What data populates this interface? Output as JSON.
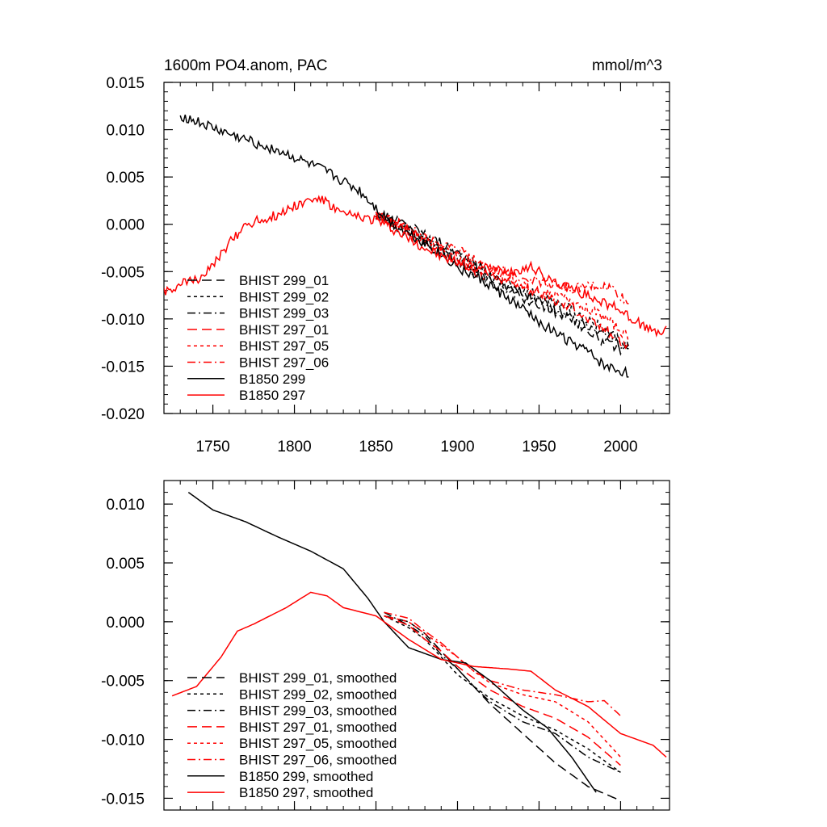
{
  "chart_data": [
    {
      "type": "line",
      "title": "1600m PO4.anom, PAC",
      "units": "mmol/m^3",
      "xlim": [
        1720,
        2030
      ],
      "ylim": [
        -0.02,
        0.015
      ],
      "x_ticks": [
        1750,
        1800,
        1850,
        1900,
        1950,
        2000
      ],
      "x_tick_labels": [
        "1750",
        "1800",
        "1850",
        "1900",
        "1950",
        "2000"
      ],
      "y_ticks": [
        0.015,
        0.01,
        0.005,
        0.0,
        -0.005,
        -0.01,
        -0.015,
        -0.02
      ],
      "y_tick_labels": [
        "0.015",
        "0.010",
        "0.005",
        "0.000",
        "-0.005",
        "-0.010",
        "-0.015",
        "-0.020"
      ],
      "legend_position": "bottom-left",
      "noisy": true,
      "series": [
        {
          "name": "BHIST 299_01",
          "color": "#000000",
          "dash": "long-dash",
          "x": [
            1850,
            1870,
            1890,
            1910,
            1930,
            1950,
            1970,
            1990,
            2005
          ],
          "y": [
            0.001,
            0.0,
            -0.002,
            -0.004,
            -0.0065,
            -0.008,
            -0.01,
            -0.0125,
            -0.0135
          ]
        },
        {
          "name": "BHIST 299_02",
          "color": "#000000",
          "dash": "short-dash",
          "x": [
            1850,
            1870,
            1890,
            1910,
            1930,
            1950,
            1970,
            1990,
            2005
          ],
          "y": [
            0.001,
            -0.0005,
            -0.0025,
            -0.0045,
            -0.0065,
            -0.0075,
            -0.009,
            -0.011,
            -0.0128
          ]
        },
        {
          "name": "BHIST 299_03",
          "color": "#000000",
          "dash": "dash-dot",
          "x": [
            1850,
            1870,
            1890,
            1910,
            1930,
            1950,
            1970,
            1990,
            2005
          ],
          "y": [
            0.001,
            -0.0005,
            -0.003,
            -0.005,
            -0.007,
            -0.0085,
            -0.01,
            -0.0115,
            -0.0132
          ]
        },
        {
          "name": "BHIST 297_01",
          "color": "#ff0000",
          "dash": "long-dash",
          "x": [
            1850,
            1870,
            1890,
            1910,
            1930,
            1950,
            1970,
            1990,
            2005
          ],
          "y": [
            0.001,
            -0.001,
            -0.003,
            -0.005,
            -0.006,
            -0.0072,
            -0.0088,
            -0.011,
            -0.013
          ]
        },
        {
          "name": "BHIST 297_05",
          "color": "#ff0000",
          "dash": "short-dash",
          "x": [
            1850,
            1870,
            1890,
            1910,
            1930,
            1950,
            1970,
            1990,
            2005
          ],
          "y": [
            0.001,
            -0.0005,
            -0.0025,
            -0.0045,
            -0.006,
            -0.0072,
            -0.008,
            -0.0098,
            -0.012
          ]
        },
        {
          "name": "BHIST 297_06",
          "color": "#ff0000",
          "dash": "dash-dot",
          "x": [
            1850,
            1870,
            1890,
            1910,
            1930,
            1950,
            1970,
            1985,
            1995,
            2005
          ],
          "y": [
            0.0015,
            -0.0005,
            -0.002,
            -0.0035,
            -0.0052,
            -0.006,
            -0.0068,
            -0.0065,
            -0.0068,
            -0.0085
          ]
        },
        {
          "name": "B1850 299",
          "color": "#000000",
          "dash": "solid",
          "x": [
            1730,
            1760,
            1790,
            1820,
            1840,
            1860,
            1880,
            1900,
            1920,
            1940,
            1960,
            1980,
            1990,
            2005
          ],
          "y": [
            0.0115,
            0.0095,
            0.0078,
            0.0055,
            0.0035,
            0.0,
            -0.002,
            -0.0045,
            -0.0065,
            -0.009,
            -0.0115,
            -0.0135,
            -0.015,
            -0.0158
          ]
        },
        {
          "name": "B1850 297",
          "color": "#ff0000",
          "dash": "solid",
          "x": [
            1720,
            1740,
            1750,
            1760,
            1770,
            1790,
            1800,
            1815,
            1830,
            1850,
            1870,
            1890,
            1910,
            1930,
            1945,
            1960,
            1980,
            2000,
            2020,
            2028
          ],
          "y": [
            -0.007,
            -0.0058,
            -0.0045,
            -0.002,
            0.0,
            0.001,
            0.002,
            0.0028,
            0.001,
            0.0005,
            -0.0015,
            -0.0035,
            -0.0045,
            -0.005,
            -0.0045,
            -0.0062,
            -0.0075,
            -0.009,
            -0.0115,
            -0.0112
          ]
        }
      ]
    },
    {
      "type": "line",
      "xlim": [
        1720,
        2030
      ],
      "ylim": [
        -0.016,
        0.012
      ],
      "x_ticks": [
        1750,
        1800,
        1850,
        1900,
        1950,
        2000
      ],
      "y_ticks": [
        0.01,
        0.005,
        0.0,
        -0.005,
        -0.01,
        -0.015
      ],
      "y_tick_labels": [
        "0.010",
        "0.005",
        "0.000",
        "-0.005",
        "-0.010",
        "-0.015"
      ],
      "legend_position": "bottom-left",
      "noisy": false,
      "series": [
        {
          "name": "BHIST 299_01, smoothed",
          "color": "#000000",
          "dash": "long-dash",
          "x": [
            1855,
            1870,
            1880,
            1890,
            1900,
            1910,
            1920,
            1940,
            1960,
            1980,
            2000
          ],
          "y": [
            0.0005,
            0.0,
            -0.001,
            -0.0025,
            -0.004,
            -0.0055,
            -0.007,
            -0.0095,
            -0.012,
            -0.014,
            -0.0152
          ]
        },
        {
          "name": "BHIST 299_02, smoothed",
          "color": "#000000",
          "dash": "short-dash",
          "x": [
            1855,
            1870,
            1880,
            1890,
            1900,
            1910,
            1920,
            1940,
            1960,
            1980,
            2000
          ],
          "y": [
            0.0005,
            -0.0005,
            -0.0015,
            -0.003,
            -0.0045,
            -0.0055,
            -0.0065,
            -0.008,
            -0.0092,
            -0.0108,
            -0.0128
          ]
        },
        {
          "name": "BHIST 299_03, smoothed",
          "color": "#000000",
          "dash": "dash-dot",
          "x": [
            1855,
            1870,
            1880,
            1890,
            1900,
            1910,
            1920,
            1940,
            1960,
            1980,
            2000
          ],
          "y": [
            0.0008,
            -0.0003,
            -0.0012,
            -0.0028,
            -0.004,
            -0.0055,
            -0.0068,
            -0.0085,
            -0.0095,
            -0.0115,
            -0.0128
          ]
        },
        {
          "name": "BHIST 297_01, smoothed",
          "color": "#ff0000",
          "dash": "long-dash",
          "x": [
            1855,
            1870,
            1880,
            1890,
            1900,
            1910,
            1920,
            1940,
            1960,
            1980,
            2000
          ],
          "y": [
            0.0005,
            -0.0003,
            -0.0015,
            -0.0025,
            -0.0038,
            -0.0048,
            -0.0058,
            -0.0072,
            -0.0082,
            -0.0098,
            -0.0122
          ]
        },
        {
          "name": "BHIST 297_05, smoothed",
          "color": "#ff0000",
          "dash": "short-dash",
          "x": [
            1855,
            1870,
            1880,
            1890,
            1900,
            1910,
            1920,
            1940,
            1960,
            1980,
            2000
          ],
          "y": [
            0.0005,
            0.0,
            -0.001,
            -0.002,
            -0.003,
            -0.0042,
            -0.0052,
            -0.0062,
            -0.0068,
            -0.0085,
            -0.0115
          ]
        },
        {
          "name": "BHIST 297_06, smoothed",
          "color": "#ff0000",
          "dash": "dash-dot",
          "x": [
            1855,
            1870,
            1880,
            1890,
            1900,
            1910,
            1920,
            1940,
            1960,
            1980,
            1990,
            2000
          ],
          "y": [
            0.0008,
            0.0003,
            -0.0008,
            -0.0018,
            -0.003,
            -0.0042,
            -0.005,
            -0.0058,
            -0.0062,
            -0.0068,
            -0.0067,
            -0.008
          ]
        },
        {
          "name": "B1850 299, smoothed",
          "color": "#000000",
          "dash": "solid",
          "x": [
            1735,
            1750,
            1770,
            1790,
            1810,
            1830,
            1845,
            1855,
            1870,
            1890,
            1905,
            1920,
            1940,
            1955,
            1970,
            1985
          ],
          "y": [
            0.011,
            0.0095,
            0.0085,
            0.0072,
            0.006,
            0.0045,
            0.002,
            0.0,
            -0.0022,
            -0.0032,
            -0.0035,
            -0.005,
            -0.0075,
            -0.009,
            -0.0115,
            -0.0145
          ]
        },
        {
          "name": "B1850 297, smoothed",
          "color": "#ff0000",
          "dash": "solid",
          "x": [
            1725,
            1740,
            1755,
            1765,
            1775,
            1795,
            1810,
            1820,
            1830,
            1850,
            1870,
            1890,
            1910,
            1930,
            1945,
            1960,
            1980,
            2000,
            2020,
            2028
          ],
          "y": [
            -0.0063,
            -0.0055,
            -0.003,
            -0.0008,
            -0.0002,
            0.0012,
            0.0025,
            0.0022,
            0.0012,
            0.0005,
            -0.0015,
            -0.0032,
            -0.0038,
            -0.004,
            -0.0042,
            -0.0058,
            -0.0072,
            -0.0095,
            -0.0105,
            -0.0115
          ]
        }
      ]
    }
  ]
}
